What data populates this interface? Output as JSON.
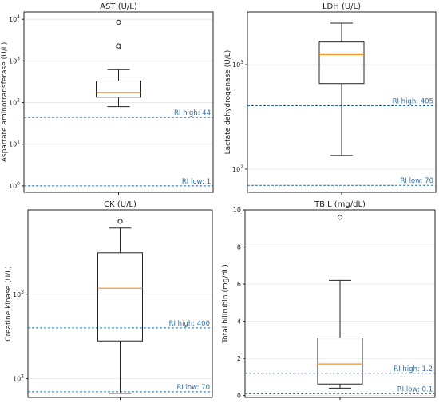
{
  "chart_data": [
    {
      "type": "box",
      "title": "AST (U/L)",
      "ylabel": "Aspartate aminotransferase (U/L)",
      "yscale": "log",
      "ylim": [
        0.7,
        15000
      ],
      "yticks": [
        1,
        10,
        100,
        1000,
        10000
      ],
      "ytick_labels": [
        [
          "10",
          "0"
        ],
        [
          "10",
          "1"
        ],
        [
          "10",
          "2"
        ],
        [
          "10",
          "3"
        ],
        [
          "10",
          "4"
        ]
      ],
      "grid": true,
      "box": {
        "whisker_low": 80,
        "q1": 135,
        "median": 175,
        "q3": 330,
        "whisker_high": 620
      },
      "outliers": [
        2150,
        2300,
        8500
      ],
      "ref_lines": [
        {
          "label": "RI high: 44",
          "value": 44
        },
        {
          "label": "RI low: 1",
          "value": 1
        }
      ]
    },
    {
      "type": "box",
      "title": "LDH (U/L)",
      "ylabel": "Lactate dehydrogenase (U/L)",
      "yscale": "log",
      "ylim": [
        60,
        3200
      ],
      "yticks": [
        100,
        1000
      ],
      "ytick_labels": [
        [
          "10",
          "2"
        ],
        [
          "10",
          "3"
        ]
      ],
      "grid": true,
      "box": {
        "whisker_low": 135,
        "q1": 660,
        "median": 1250,
        "q3": 1650,
        "whisker_high": 2500
      },
      "outliers": [],
      "ref_lines": [
        {
          "label": "RI high: 405",
          "value": 405
        },
        {
          "label": "RI low: 70",
          "value": 70
        }
      ]
    },
    {
      "type": "box",
      "title": "CK (U/L)",
      "ylabel": "Creatine kinase (U/L)",
      "yscale": "log",
      "ylim": [
        60,
        10000
      ],
      "yticks": [
        100,
        1000
      ],
      "ytick_labels": [
        [
          "10",
          "2"
        ],
        [
          "10",
          "3"
        ]
      ],
      "grid": true,
      "box": {
        "whisker_low": 67,
        "q1": 280,
        "median": 1180,
        "q3": 3100,
        "whisker_high": 6100
      },
      "outliers": [
        7300
      ],
      "ref_lines": [
        {
          "label": "RI high: 400",
          "value": 400
        },
        {
          "label": "RI low: 70",
          "value": 70
        }
      ]
    },
    {
      "type": "box",
      "title": "TBIL (mg/dL)",
      "ylabel": "Total bilirubin (mg/dL)",
      "yscale": "linear",
      "ylim": [
        -0.1,
        10
      ],
      "yticks": [
        0,
        2,
        4,
        6,
        8,
        10
      ],
      "ytick_labels": [
        [
          "0",
          ""
        ],
        [
          "2",
          ""
        ],
        [
          "4",
          ""
        ],
        [
          "6",
          ""
        ],
        [
          "8",
          ""
        ],
        [
          "10",
          ""
        ]
      ],
      "grid": true,
      "box": {
        "whisker_low": 0.4,
        "q1": 0.62,
        "median": 1.7,
        "q3": 3.1,
        "whisker_high": 6.2
      },
      "outliers": [
        9.6
      ],
      "ref_lines": [
        {
          "label": "RI high: 1.2",
          "value": 1.2
        },
        {
          "label": "RI low: 0.1",
          "value": 0.1
        }
      ]
    }
  ]
}
